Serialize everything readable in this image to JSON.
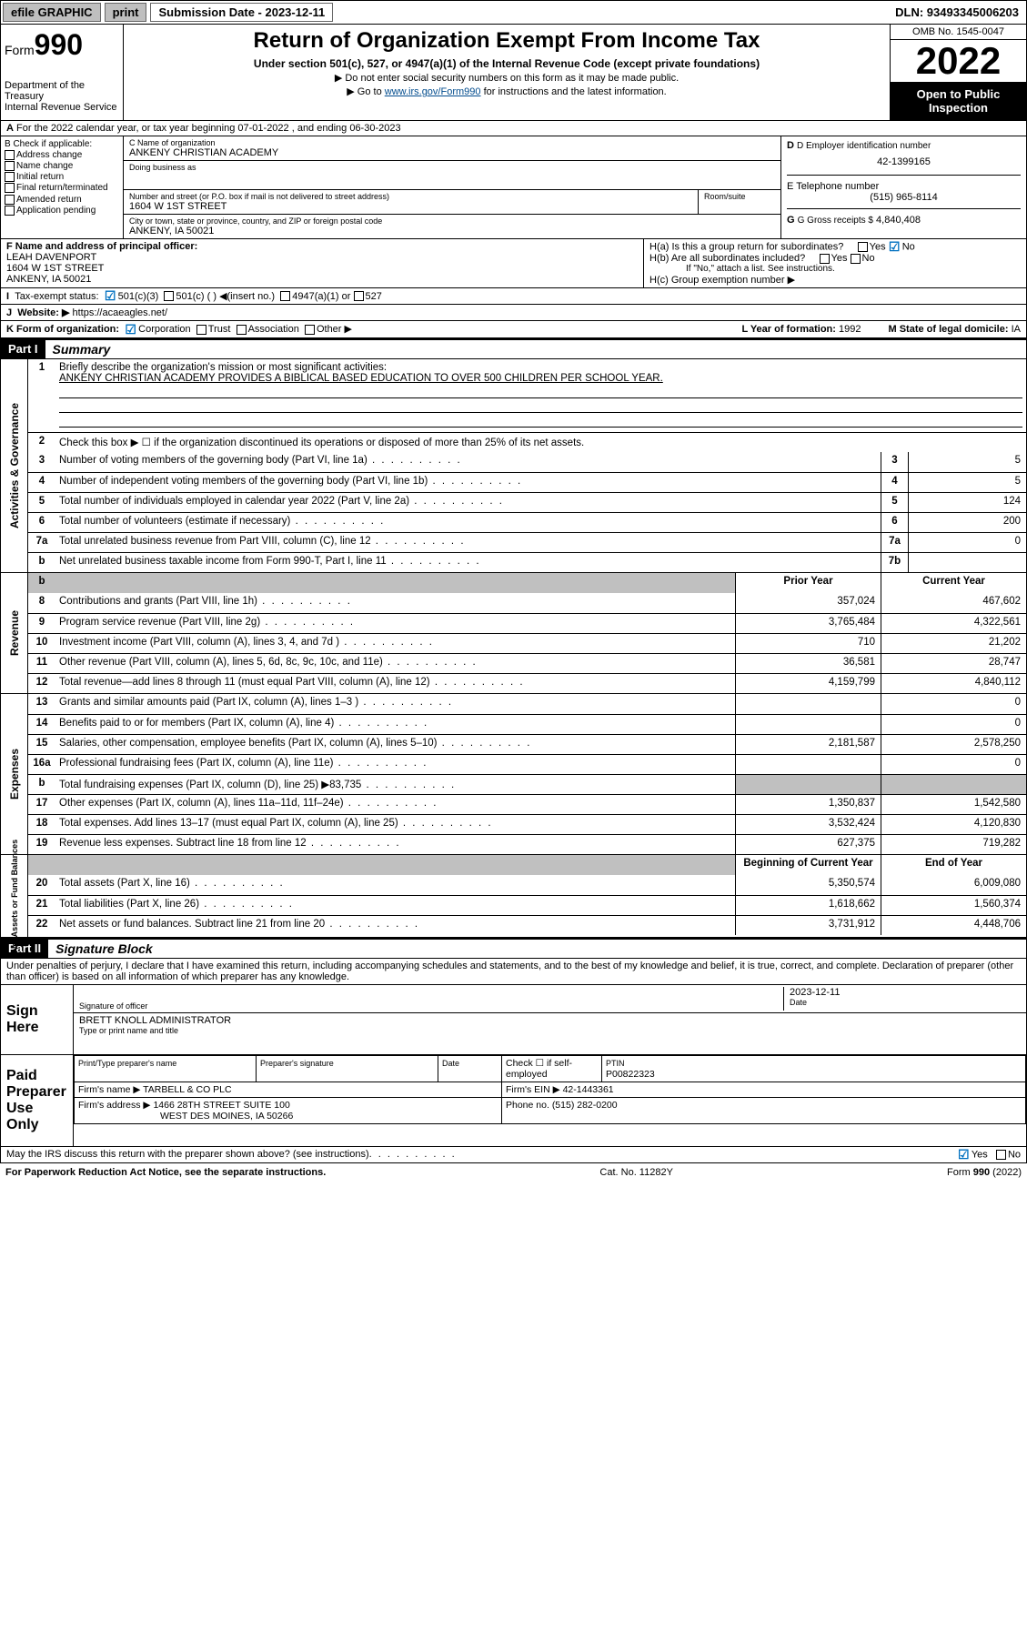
{
  "topbar": {
    "efile": "efile GRAPHIC",
    "print": "print",
    "sub_label": "Submission Date - 2023-12-11",
    "dln": "DLN: 93493345006203"
  },
  "header": {
    "form_label": "Form",
    "form_num": "990",
    "dept": "Department of the Treasury",
    "irs": "Internal Revenue Service",
    "title": "Return of Organization Exempt From Income Tax",
    "sub": "Under section 501(c), 527, or 4947(a)(1) of the Internal Revenue Code (except private foundations)",
    "note1": "▶ Do not enter social security numbers on this form as it may be made public.",
    "note2_pre": "▶ Go to ",
    "note2_link": "www.irs.gov/Form990",
    "note2_post": " for instructions and the latest information.",
    "omb": "OMB No. 1545-0047",
    "year": "2022",
    "open": "Open to Public Inspection"
  },
  "A": {
    "text": "For the 2022 calendar year, or tax year beginning 07-01-2022   , and ending 06-30-2023"
  },
  "B": {
    "label": "B Check if applicable:",
    "items": [
      "Address change",
      "Name change",
      "Initial return",
      "Final return/terminated",
      "Amended return",
      "Application pending"
    ]
  },
  "C": {
    "name_label": "C Name of organization",
    "name": "ANKENY CHRISTIAN ACADEMY",
    "dba_label": "Doing business as",
    "street_label": "Number and street (or P.O. box if mail is not delivered to street address)",
    "street": "1604 W 1ST STREET",
    "room_label": "Room/suite",
    "city_label": "City or town, state or province, country, and ZIP or foreign postal code",
    "city": "ANKENY, IA  50021"
  },
  "D": {
    "label": "D Employer identification number",
    "val": "42-1399165"
  },
  "E": {
    "label": "E Telephone number",
    "val": "(515) 965-8114"
  },
  "G": {
    "label": "G Gross receipts $",
    "val": "4,840,408"
  },
  "F": {
    "label": "F Name and address of principal officer:",
    "name": "LEAH DAVENPORT",
    "addr1": "1604 W 1ST STREET",
    "addr2": "ANKENY, IA  50021"
  },
  "H": {
    "a": "H(a)  Is this a group return for subordinates?",
    "b": "H(b)  Are all subordinates included?",
    "b_note": "If \"No,\" attach a list. See instructions.",
    "c": "H(c)  Group exemption number ▶"
  },
  "I": {
    "label": "Tax-exempt status:",
    "opt1": "501(c)(3)",
    "opt2": "501(c) (  ) ◀(insert no.)",
    "opt3": "4947(a)(1) or",
    "opt4": "527"
  },
  "J": {
    "label": "Website: ▶",
    "val": "https://acaeagles.net/"
  },
  "K": {
    "label": "K Form of organization:",
    "opts": [
      "Corporation",
      "Trust",
      "Association",
      "Other ▶"
    ]
  },
  "L": {
    "label": "L Year of formation:",
    "val": "1992"
  },
  "M": {
    "label": "M State of legal domicile:",
    "val": "IA"
  },
  "part1": {
    "hdr": "Part I",
    "title": "Summary",
    "l1": "Briefly describe the organization's mission or most significant activities:",
    "l1val": "ANKENY CHRISTIAN ACADEMY PROVIDES A BIBLICAL BASED EDUCATION TO OVER 500 CHILDREN PER SCHOOL YEAR.",
    "l2": "Check this box ▶ ☐  if the organization discontinued its operations or disposed of more than 25% of its net assets.",
    "vtab": "Activities & Governance",
    "rows_a": [
      {
        "n": "3",
        "t": "Number of voting members of the governing body (Part VI, line 1a)",
        "b": "3",
        "v": "5"
      },
      {
        "n": "4",
        "t": "Number of independent voting members of the governing body (Part VI, line 1b)",
        "b": "4",
        "v": "5"
      },
      {
        "n": "5",
        "t": "Total number of individuals employed in calendar year 2022 (Part V, line 2a)",
        "b": "5",
        "v": "124"
      },
      {
        "n": "6",
        "t": "Total number of volunteers (estimate if necessary)",
        "b": "6",
        "v": "200"
      },
      {
        "n": "7a",
        "t": "Total unrelated business revenue from Part VIII, column (C), line 12",
        "b": "7a",
        "v": "0"
      },
      {
        "n": "b",
        "t": "Net unrelated business taxable income from Form 990-T, Part I, line 11",
        "b": "7b",
        "v": ""
      }
    ],
    "col_prior": "Prior Year",
    "col_curr": "Current Year",
    "vtab_rev": "Revenue",
    "rows_rev": [
      {
        "n": "8",
        "t": "Contributions and grants (Part VIII, line 1h)",
        "p": "357,024",
        "c": "467,602"
      },
      {
        "n": "9",
        "t": "Program service revenue (Part VIII, line 2g)",
        "p": "3,765,484",
        "c": "4,322,561"
      },
      {
        "n": "10",
        "t": "Investment income (Part VIII, column (A), lines 3, 4, and 7d )",
        "p": "710",
        "c": "21,202"
      },
      {
        "n": "11",
        "t": "Other revenue (Part VIII, column (A), lines 5, 6d, 8c, 9c, 10c, and 11e)",
        "p": "36,581",
        "c": "28,747"
      },
      {
        "n": "12",
        "t": "Total revenue—add lines 8 through 11 (must equal Part VIII, column (A), line 12)",
        "p": "4,159,799",
        "c": "4,840,112"
      }
    ],
    "vtab_exp": "Expenses",
    "rows_exp": [
      {
        "n": "13",
        "t": "Grants and similar amounts paid (Part IX, column (A), lines 1–3 )",
        "p": "",
        "c": "0"
      },
      {
        "n": "14",
        "t": "Benefits paid to or for members (Part IX, column (A), line 4)",
        "p": "",
        "c": "0"
      },
      {
        "n": "15",
        "t": "Salaries, other compensation, employee benefits (Part IX, column (A), lines 5–10)",
        "p": "2,181,587",
        "c": "2,578,250"
      },
      {
        "n": "16a",
        "t": "Professional fundraising fees (Part IX, column (A), line 11e)",
        "p": "",
        "c": "0"
      },
      {
        "n": "b",
        "t": "Total fundraising expenses (Part IX, column (D), line 25) ▶83,735",
        "p": "grey",
        "c": "grey"
      },
      {
        "n": "17",
        "t": "Other expenses (Part IX, column (A), lines 11a–11d, 11f–24e)",
        "p": "1,350,837",
        "c": "1,542,580"
      },
      {
        "n": "18",
        "t": "Total expenses. Add lines 13–17 (must equal Part IX, column (A), line 25)",
        "p": "3,532,424",
        "c": "4,120,830"
      },
      {
        "n": "19",
        "t": "Revenue less expenses. Subtract line 18 from line 12",
        "p": "627,375",
        "c": "719,282"
      }
    ],
    "col_beg": "Beginning of Current Year",
    "col_end": "End of Year",
    "vtab_net": "Net Assets or Fund Balances",
    "rows_net": [
      {
        "n": "20",
        "t": "Total assets (Part X, line 16)",
        "p": "5,350,574",
        "c": "6,009,080"
      },
      {
        "n": "21",
        "t": "Total liabilities (Part X, line 26)",
        "p": "1,618,662",
        "c": "1,560,374"
      },
      {
        "n": "22",
        "t": "Net assets or fund balances. Subtract line 21 from line 20",
        "p": "3,731,912",
        "c": "4,448,706"
      }
    ]
  },
  "part2": {
    "hdr": "Part II",
    "title": "Signature Block",
    "decl": "Under penalties of perjury, I declare that I have examined this return, including accompanying schedules and statements, and to the best of my knowledge and belief, it is true, correct, and complete. Declaration of preparer (other than officer) is based on all information of which preparer has any knowledge.",
    "sign_here": "Sign Here",
    "sig_officer": "Signature of officer",
    "sig_date": "2023-12-11",
    "date_label": "Date",
    "officer_name": "BRETT KNOLL  ADMINISTRATOR",
    "officer_type": "Type or print name and title",
    "paid": "Paid Preparer Use Only",
    "prep_name_label": "Print/Type preparer's name",
    "prep_sig_label": "Preparer's signature",
    "prep_date_label": "Date",
    "check_if": "Check ☐ if self-employed",
    "ptin_label": "PTIN",
    "ptin": "P00822323",
    "firm_name_label": "Firm's name    ▶",
    "firm_name": "TARBELL & CO PLC",
    "firm_ein_label": "Firm's EIN ▶",
    "firm_ein": "42-1443361",
    "firm_addr_label": "Firm's address ▶",
    "firm_addr1": "1466 28TH STREET SUITE 100",
    "firm_addr2": "WEST DES MOINES, IA  50266",
    "phone_label": "Phone no.",
    "phone": "(515) 282-0200",
    "may_irs": "May the IRS discuss this return with the preparer shown above? (see instructions)"
  },
  "footer": {
    "left": "For Paperwork Reduction Act Notice, see the separate instructions.",
    "mid": "Cat. No. 11282Y",
    "right": "Form 990 (2022)"
  }
}
